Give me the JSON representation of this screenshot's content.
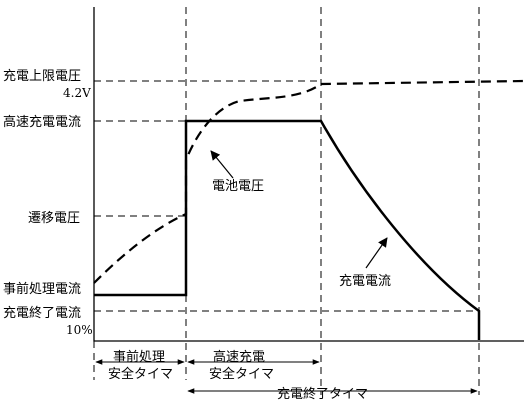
{
  "y_labels": {
    "charge_upper_voltage": "充電上限電圧",
    "charge_upper_voltage_value": "4.2V",
    "fast_charge_current": "高速充電電流",
    "transition_voltage": "遷移電圧",
    "precharge_current": "事前処理電流",
    "termination_current": "充電終了電流",
    "termination_current_value": "10%"
  },
  "curve_labels": {
    "battery_voltage": "電池電圧",
    "charge_current": "充電電流"
  },
  "timers": {
    "precharge_timer_line1": "事前処理",
    "precharge_timer_line2": "安全タイマ",
    "fast_charge_timer_line1": "高速充電",
    "fast_charge_timer_line2": "安全タイマ",
    "termination_timer": "充電終了タイマ"
  }
}
